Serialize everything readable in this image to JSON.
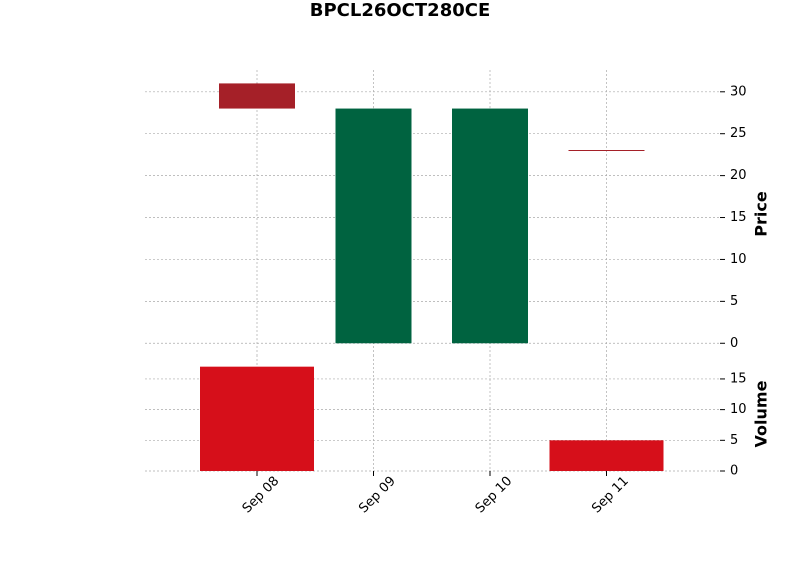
{
  "chart_data": {
    "type": "candlestick",
    "title": "BPCL26OCT280CE",
    "categories": [
      "Sep 08",
      "Sep 09",
      "Sep 10",
      "Sep 11"
    ],
    "open": [
      31,
      0,
      0,
      23
    ],
    "high": [
      31,
      28,
      28,
      23
    ],
    "low": [
      28,
      0,
      0,
      23
    ],
    "close": [
      28,
      28,
      28,
      23
    ],
    "up_color": "#006340",
    "down_color": "#a52028",
    "ylabel": "Price",
    "ylim": [
      -1.4,
      32.6
    ],
    "yticks": [
      0,
      5,
      10,
      15,
      20,
      25,
      30
    ],
    "grid": true,
    "volume": {
      "label": "Volume",
      "values": [
        17,
        0,
        0,
        5
      ],
      "color": "#d60f1a",
      "ylim": [
        0,
        18.9
      ],
      "yticks": [
        0,
        5,
        10,
        15
      ]
    }
  }
}
